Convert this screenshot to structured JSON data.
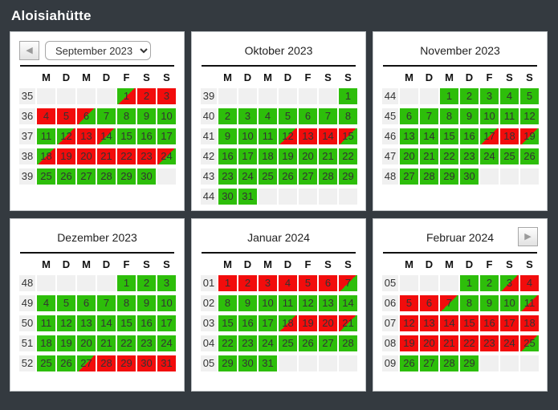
{
  "title": "Aloisiahütte",
  "nav": {
    "prev_icon": "◀",
    "next_icon": "▶"
  },
  "day_headers": [
    "M",
    "D",
    "M",
    "D",
    "F",
    "S",
    "S"
  ],
  "legend": {
    "free_color": "#2DBE0A",
    "occupied_color": "#F20C0C",
    "empty_color": "#F0F0F0",
    "background_color": "#343A40"
  },
  "months": [
    {
      "title": "September 2023",
      "has_prev": true,
      "has_select": true,
      "has_next": false,
      "weeks": [
        {
          "num": "35",
          "days": [
            [
              "",
              "e"
            ],
            [
              "",
              "e"
            ],
            [
              "",
              "e"
            ],
            [
              "",
              "e"
            ],
            [
              "1",
              "gr"
            ],
            [
              "2",
              "r"
            ],
            [
              "3",
              "r"
            ]
          ]
        },
        {
          "num": "36",
          "days": [
            [
              "4",
              "r"
            ],
            [
              "5",
              "r"
            ],
            [
              "6",
              "rg"
            ],
            [
              "7",
              "g"
            ],
            [
              "8",
              "g"
            ],
            [
              "9",
              "g"
            ],
            [
              "10",
              "g"
            ]
          ]
        },
        {
          "num": "37",
          "days": [
            [
              "11",
              "g"
            ],
            [
              "12",
              "gr"
            ],
            [
              "13",
              "r"
            ],
            [
              "14",
              "rg"
            ],
            [
              "15",
              "g"
            ],
            [
              "16",
              "g"
            ],
            [
              "17",
              "g"
            ]
          ]
        },
        {
          "num": "38",
          "days": [
            [
              "18",
              "gr"
            ],
            [
              "19",
              "r"
            ],
            [
              "20",
              "r"
            ],
            [
              "21",
              "r"
            ],
            [
              "22",
              "r"
            ],
            [
              "23",
              "r"
            ],
            [
              "24",
              "rg"
            ]
          ]
        },
        {
          "num": "39",
          "days": [
            [
              "25",
              "g"
            ],
            [
              "26",
              "g"
            ],
            [
              "27",
              "g"
            ],
            [
              "28",
              "g"
            ],
            [
              "29",
              "g"
            ],
            [
              "30",
              "g"
            ],
            [
              "",
              "e"
            ]
          ]
        }
      ]
    },
    {
      "title": "Oktober 2023",
      "has_prev": false,
      "has_select": false,
      "has_next": false,
      "weeks": [
        {
          "num": "39",
          "days": [
            [
              "",
              "e"
            ],
            [
              "",
              "e"
            ],
            [
              "",
              "e"
            ],
            [
              "",
              "e"
            ],
            [
              "",
              "e"
            ],
            [
              "",
              "e"
            ],
            [
              "1",
              "g"
            ]
          ]
        },
        {
          "num": "40",
          "days": [
            [
              "2",
              "g"
            ],
            [
              "3",
              "g"
            ],
            [
              "4",
              "g"
            ],
            [
              "5",
              "g"
            ],
            [
              "6",
              "g"
            ],
            [
              "7",
              "g"
            ],
            [
              "8",
              "g"
            ]
          ]
        },
        {
          "num": "41",
          "days": [
            [
              "9",
              "g"
            ],
            [
              "10",
              "g"
            ],
            [
              "11",
              "g"
            ],
            [
              "12",
              "gr"
            ],
            [
              "13",
              "r"
            ],
            [
              "14",
              "r"
            ],
            [
              "15",
              "rg"
            ]
          ]
        },
        {
          "num": "42",
          "days": [
            [
              "16",
              "g"
            ],
            [
              "17",
              "g"
            ],
            [
              "18",
              "g"
            ],
            [
              "19",
              "g"
            ],
            [
              "20",
              "g"
            ],
            [
              "21",
              "g"
            ],
            [
              "22",
              "g"
            ]
          ]
        },
        {
          "num": "43",
          "days": [
            [
              "23",
              "g"
            ],
            [
              "24",
              "g"
            ],
            [
              "25",
              "g"
            ],
            [
              "26",
              "g"
            ],
            [
              "27",
              "g"
            ],
            [
              "28",
              "g"
            ],
            [
              "29",
              "g"
            ]
          ]
        },
        {
          "num": "44",
          "days": [
            [
              "30",
              "g"
            ],
            [
              "31",
              "g"
            ],
            [
              "",
              "e"
            ],
            [
              "",
              "e"
            ],
            [
              "",
              "e"
            ],
            [
              "",
              "e"
            ],
            [
              "",
              "e"
            ]
          ]
        }
      ]
    },
    {
      "title": "November 2023",
      "has_prev": false,
      "has_select": false,
      "has_next": false,
      "weeks": [
        {
          "num": "44",
          "days": [
            [
              "",
              "e"
            ],
            [
              "",
              "e"
            ],
            [
              "1",
              "g"
            ],
            [
              "2",
              "g"
            ],
            [
              "3",
              "g"
            ],
            [
              "4",
              "g"
            ],
            [
              "5",
              "g"
            ]
          ]
        },
        {
          "num": "45",
          "days": [
            [
              "6",
              "g"
            ],
            [
              "7",
              "g"
            ],
            [
              "8",
              "g"
            ],
            [
              "9",
              "g"
            ],
            [
              "10",
              "g"
            ],
            [
              "11",
              "g"
            ],
            [
              "12",
              "g"
            ]
          ]
        },
        {
          "num": "46",
          "days": [
            [
              "13",
              "g"
            ],
            [
              "14",
              "g"
            ],
            [
              "15",
              "g"
            ],
            [
              "16",
              "g"
            ],
            [
              "17",
              "gr"
            ],
            [
              "18",
              "r"
            ],
            [
              "19",
              "rg"
            ]
          ]
        },
        {
          "num": "47",
          "days": [
            [
              "20",
              "g"
            ],
            [
              "21",
              "g"
            ],
            [
              "22",
              "g"
            ],
            [
              "23",
              "g"
            ],
            [
              "24",
              "g"
            ],
            [
              "25",
              "g"
            ],
            [
              "26",
              "g"
            ]
          ]
        },
        {
          "num": "48",
          "days": [
            [
              "27",
              "g"
            ],
            [
              "28",
              "g"
            ],
            [
              "29",
              "g"
            ],
            [
              "30",
              "g"
            ],
            [
              "",
              "e"
            ],
            [
              "",
              "e"
            ],
            [
              "",
              "e"
            ]
          ]
        }
      ]
    },
    {
      "title": "Dezember 2023",
      "has_prev": false,
      "has_select": false,
      "has_next": false,
      "weeks": [
        {
          "num": "48",
          "days": [
            [
              "",
              "e"
            ],
            [
              "",
              "e"
            ],
            [
              "",
              "e"
            ],
            [
              "",
              "e"
            ],
            [
              "1",
              "g"
            ],
            [
              "2",
              "g"
            ],
            [
              "3",
              "g"
            ]
          ]
        },
        {
          "num": "49",
          "days": [
            [
              "4",
              "g"
            ],
            [
              "5",
              "g"
            ],
            [
              "6",
              "g"
            ],
            [
              "7",
              "g"
            ],
            [
              "8",
              "g"
            ],
            [
              "9",
              "g"
            ],
            [
              "10",
              "g"
            ]
          ]
        },
        {
          "num": "50",
          "days": [
            [
              "11",
              "g"
            ],
            [
              "12",
              "g"
            ],
            [
              "13",
              "g"
            ],
            [
              "14",
              "g"
            ],
            [
              "15",
              "g"
            ],
            [
              "16",
              "g"
            ],
            [
              "17",
              "g"
            ]
          ]
        },
        {
          "num": "51",
          "days": [
            [
              "18",
              "g"
            ],
            [
              "19",
              "g"
            ],
            [
              "20",
              "g"
            ],
            [
              "21",
              "g"
            ],
            [
              "22",
              "g"
            ],
            [
              "23",
              "g"
            ],
            [
              "24",
              "g"
            ]
          ]
        },
        {
          "num": "52",
          "days": [
            [
              "25",
              "g"
            ],
            [
              "26",
              "g"
            ],
            [
              "27",
              "gr"
            ],
            [
              "28",
              "r"
            ],
            [
              "29",
              "r"
            ],
            [
              "30",
              "r"
            ],
            [
              "31",
              "r"
            ]
          ]
        }
      ]
    },
    {
      "title": "Januar 2024",
      "has_prev": false,
      "has_select": false,
      "has_next": false,
      "weeks": [
        {
          "num": "01",
          "days": [
            [
              "1",
              "r"
            ],
            [
              "2",
              "r"
            ],
            [
              "3",
              "r"
            ],
            [
              "4",
              "r"
            ],
            [
              "5",
              "r"
            ],
            [
              "6",
              "r"
            ],
            [
              "7",
              "rg"
            ]
          ]
        },
        {
          "num": "02",
          "days": [
            [
              "8",
              "g"
            ],
            [
              "9",
              "g"
            ],
            [
              "10",
              "g"
            ],
            [
              "11",
              "g"
            ],
            [
              "12",
              "g"
            ],
            [
              "13",
              "g"
            ],
            [
              "14",
              "g"
            ]
          ]
        },
        {
          "num": "03",
          "days": [
            [
              "15",
              "g"
            ],
            [
              "16",
              "g"
            ],
            [
              "17",
              "g"
            ],
            [
              "18",
              "gr"
            ],
            [
              "19",
              "r"
            ],
            [
              "20",
              "r"
            ],
            [
              "21",
              "rg"
            ]
          ]
        },
        {
          "num": "04",
          "days": [
            [
              "22",
              "g"
            ],
            [
              "23",
              "g"
            ],
            [
              "24",
              "g"
            ],
            [
              "25",
              "g"
            ],
            [
              "26",
              "g"
            ],
            [
              "27",
              "g"
            ],
            [
              "28",
              "g"
            ]
          ]
        },
        {
          "num": "05",
          "days": [
            [
              "29",
              "g"
            ],
            [
              "30",
              "g"
            ],
            [
              "31",
              "g"
            ],
            [
              "",
              "e"
            ],
            [
              "",
              "e"
            ],
            [
              "",
              "e"
            ],
            [
              "",
              "e"
            ]
          ]
        }
      ]
    },
    {
      "title": "Februar 2024",
      "has_prev": false,
      "has_select": false,
      "has_next": true,
      "weeks": [
        {
          "num": "05",
          "days": [
            [
              "",
              "e"
            ],
            [
              "",
              "e"
            ],
            [
              "",
              "e"
            ],
            [
              "1",
              "g"
            ],
            [
              "2",
              "g"
            ],
            [
              "3",
              "gr"
            ],
            [
              "4",
              "r"
            ]
          ]
        },
        {
          "num": "06",
          "days": [
            [
              "5",
              "r"
            ],
            [
              "6",
              "r"
            ],
            [
              "7",
              "rg"
            ],
            [
              "8",
              "g"
            ],
            [
              "9",
              "g"
            ],
            [
              "10",
              "g"
            ],
            [
              "11",
              "gr"
            ]
          ]
        },
        {
          "num": "07",
          "days": [
            [
              "12",
              "r"
            ],
            [
              "13",
              "r"
            ],
            [
              "14",
              "r"
            ],
            [
              "15",
              "r"
            ],
            [
              "16",
              "r"
            ],
            [
              "17",
              "r"
            ],
            [
              "18",
              "r"
            ]
          ]
        },
        {
          "num": "08",
          "days": [
            [
              "19",
              "r"
            ],
            [
              "20",
              "r"
            ],
            [
              "21",
              "r"
            ],
            [
              "22",
              "r"
            ],
            [
              "23",
              "r"
            ],
            [
              "24",
              "r"
            ],
            [
              "25",
              "rg"
            ]
          ]
        },
        {
          "num": "09",
          "days": [
            [
              "26",
              "g"
            ],
            [
              "27",
              "g"
            ],
            [
              "28",
              "g"
            ],
            [
              "29",
              "g"
            ],
            [
              "",
              "e"
            ],
            [
              "",
              "e"
            ],
            [
              "",
              "e"
            ]
          ]
        }
      ]
    }
  ]
}
